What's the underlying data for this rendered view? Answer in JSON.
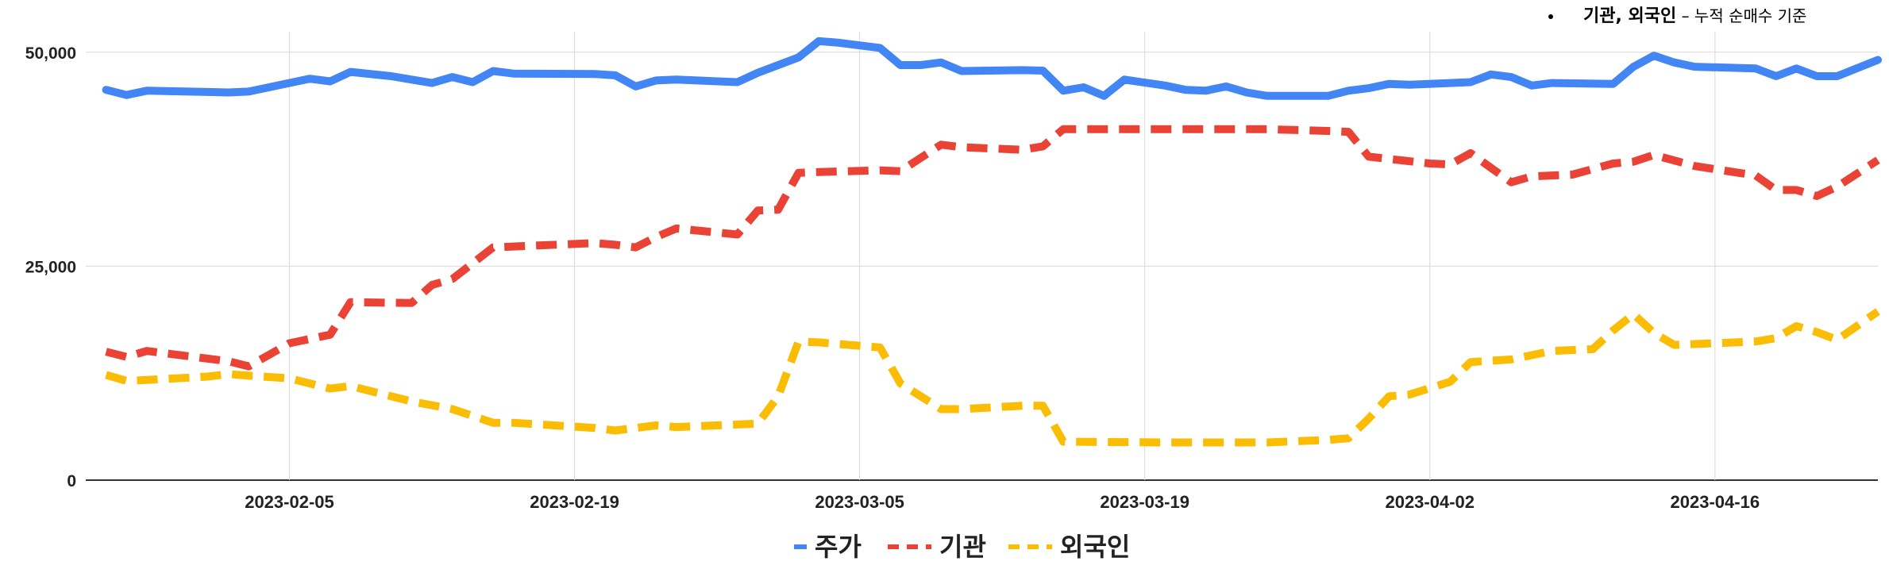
{
  "note": {
    "bold": "기관, 외국인",
    "rest": " – 누적 순매수 기준"
  },
  "colors": {
    "price": "#4285F4",
    "institution": "#EA4335",
    "foreign": "#FBBC04",
    "grid": "#d9d9d9"
  },
  "chart_data": {
    "type": "line",
    "title": "",
    "xlabel": "",
    "ylabel": "",
    "ylim": [
      0,
      51000
    ],
    "xlim": [
      "2023-01-26",
      "2023-04-24"
    ],
    "yticks": [
      0,
      25000,
      50000
    ],
    "ytick_labels": [
      "0",
      "25,000",
      "50,000"
    ],
    "xticks": [
      "2023-02-05",
      "2023-02-19",
      "2023-03-05",
      "2023-03-19",
      "2023-04-02",
      "2023-04-16"
    ],
    "grid": true,
    "legend_position": "bottom",
    "series": [
      {
        "name": "주가",
        "style": "solid",
        "color": "#4285F4",
        "points": [
          [
            "2023-01-27",
            45600
          ],
          [
            "2023-01-28",
            45000
          ],
          [
            "2023-01-29",
            45500
          ],
          [
            "2023-02-01",
            45350
          ],
          [
            "2023-02-02",
            45300
          ],
          [
            "2023-02-03",
            45400
          ],
          [
            "2023-02-06",
            46900
          ],
          [
            "2023-02-07",
            46600
          ],
          [
            "2023-02-08",
            47700
          ],
          [
            "2023-02-10",
            47200
          ],
          [
            "2023-02-12",
            46400
          ],
          [
            "2023-02-13",
            47100
          ],
          [
            "2023-02-14",
            46500
          ],
          [
            "2023-02-15",
            47800
          ],
          [
            "2023-02-16",
            47500
          ],
          [
            "2023-02-20",
            47450
          ],
          [
            "2023-02-21",
            47300
          ],
          [
            "2023-02-22",
            46000
          ],
          [
            "2023-02-23",
            46700
          ],
          [
            "2023-02-24",
            46800
          ],
          [
            "2023-02-27",
            46500
          ],
          [
            "2023-02-28",
            47600
          ],
          [
            "2023-03-02",
            49400
          ],
          [
            "2023-03-03",
            51300
          ],
          [
            "2023-03-04",
            51100
          ],
          [
            "2023-03-06",
            50500
          ],
          [
            "2023-03-07",
            48500
          ],
          [
            "2023-03-08",
            48500
          ],
          [
            "2023-03-09",
            48800
          ],
          [
            "2023-03-10",
            47800
          ],
          [
            "2023-03-13",
            47900
          ],
          [
            "2023-03-14",
            47850
          ],
          [
            "2023-03-15",
            45500
          ],
          [
            "2023-03-16",
            45900
          ],
          [
            "2023-03-17",
            44900
          ],
          [
            "2023-03-18",
            46800
          ],
          [
            "2023-03-20",
            46100
          ],
          [
            "2023-03-21",
            45600
          ],
          [
            "2023-03-22",
            45500
          ],
          [
            "2023-03-23",
            46000
          ],
          [
            "2023-03-24",
            45300
          ],
          [
            "2023-03-25",
            44900
          ],
          [
            "2023-03-28",
            44900
          ],
          [
            "2023-03-29",
            45500
          ],
          [
            "2023-03-30",
            45800
          ],
          [
            "2023-03-31",
            46300
          ],
          [
            "2023-04-01",
            46200
          ],
          [
            "2023-04-03",
            46400
          ],
          [
            "2023-04-04",
            46500
          ],
          [
            "2023-04-05",
            47400
          ],
          [
            "2023-04-06",
            47100
          ],
          [
            "2023-04-07",
            46100
          ],
          [
            "2023-04-08",
            46400
          ],
          [
            "2023-04-11",
            46300
          ],
          [
            "2023-04-12",
            48300
          ],
          [
            "2023-04-13",
            49600
          ],
          [
            "2023-04-14",
            48800
          ],
          [
            "2023-04-15",
            48300
          ],
          [
            "2023-04-18",
            48100
          ],
          [
            "2023-04-19",
            47200
          ],
          [
            "2023-04-20",
            48100
          ],
          [
            "2023-04-21",
            47200
          ],
          [
            "2023-04-22",
            47200
          ],
          [
            "2023-04-24",
            49100
          ]
        ]
      },
      {
        "name": "기관",
        "style": "dashed",
        "color": "#EA4335",
        "points": [
          [
            "2023-01-27",
            15000
          ],
          [
            "2023-01-28",
            14400
          ],
          [
            "2023-01-29",
            15100
          ],
          [
            "2023-02-01",
            14200
          ],
          [
            "2023-02-02",
            13900
          ],
          [
            "2023-02-03",
            13300
          ],
          [
            "2023-02-05",
            16000
          ],
          [
            "2023-02-07",
            17000
          ],
          [
            "2023-02-08",
            20800
          ],
          [
            "2023-02-11",
            20700
          ],
          [
            "2023-02-12",
            22800
          ],
          [
            "2023-02-13",
            23500
          ],
          [
            "2023-02-15",
            27200
          ],
          [
            "2023-02-16",
            27300
          ],
          [
            "2023-02-20",
            27700
          ],
          [
            "2023-02-21",
            27500
          ],
          [
            "2023-02-22",
            27200
          ],
          [
            "2023-02-23",
            28400
          ],
          [
            "2023-02-24",
            29400
          ],
          [
            "2023-02-27",
            28700
          ],
          [
            "2023-02-28",
            31500
          ],
          [
            "2023-03-01",
            31600
          ],
          [
            "2023-03-02",
            35900
          ],
          [
            "2023-03-03",
            36000
          ],
          [
            "2023-03-06",
            36200
          ],
          [
            "2023-03-07",
            36100
          ],
          [
            "2023-03-09",
            39200
          ],
          [
            "2023-03-10",
            38900
          ],
          [
            "2023-03-13",
            38600
          ],
          [
            "2023-03-14",
            39000
          ],
          [
            "2023-03-15",
            41000
          ],
          [
            "2023-03-20",
            41000
          ],
          [
            "2023-03-25",
            41000
          ],
          [
            "2023-03-28",
            40800
          ],
          [
            "2023-03-29",
            40700
          ],
          [
            "2023-03-30",
            37800
          ],
          [
            "2023-04-02",
            37000
          ],
          [
            "2023-04-03",
            36900
          ],
          [
            "2023-04-04",
            38200
          ],
          [
            "2023-04-06",
            34800
          ],
          [
            "2023-04-07",
            35500
          ],
          [
            "2023-04-09",
            35700
          ],
          [
            "2023-04-11",
            37000
          ],
          [
            "2023-04-12",
            37200
          ],
          [
            "2023-04-13",
            38000
          ],
          [
            "2023-04-15",
            36700
          ],
          [
            "2023-04-18",
            35600
          ],
          [
            "2023-04-19",
            33900
          ],
          [
            "2023-04-20",
            33900
          ],
          [
            "2023-04-21",
            33200
          ],
          [
            "2023-04-22",
            34300
          ],
          [
            "2023-04-24",
            37400
          ]
        ]
      },
      {
        "name": "외국인",
        "style": "dashed",
        "color": "#FBBC04",
        "points": [
          [
            "2023-01-27",
            12300
          ],
          [
            "2023-01-28",
            11600
          ],
          [
            "2023-01-29",
            11700
          ],
          [
            "2023-02-01",
            12100
          ],
          [
            "2023-02-02",
            12400
          ],
          [
            "2023-02-03",
            12200
          ],
          [
            "2023-02-05",
            11900
          ],
          [
            "2023-02-07",
            10700
          ],
          [
            "2023-02-08",
            11000
          ],
          [
            "2023-02-11",
            9200
          ],
          [
            "2023-02-13",
            8300
          ],
          [
            "2023-02-15",
            6700
          ],
          [
            "2023-02-16",
            6700
          ],
          [
            "2023-02-20",
            6100
          ],
          [
            "2023-02-21",
            5800
          ],
          [
            "2023-02-23",
            6400
          ],
          [
            "2023-02-24",
            6200
          ],
          [
            "2023-02-27",
            6500
          ],
          [
            "2023-02-28",
            6600
          ],
          [
            "2023-03-01",
            9800
          ],
          [
            "2023-03-02",
            16200
          ],
          [
            "2023-03-03",
            16100
          ],
          [
            "2023-03-06",
            15500
          ],
          [
            "2023-03-07",
            11300
          ],
          [
            "2023-03-09",
            8300
          ],
          [
            "2023-03-10",
            8300
          ],
          [
            "2023-03-13",
            8700
          ],
          [
            "2023-03-14",
            8700
          ],
          [
            "2023-03-15",
            4500
          ],
          [
            "2023-03-20",
            4400
          ],
          [
            "2023-03-25",
            4400
          ],
          [
            "2023-03-28",
            4700
          ],
          [
            "2023-03-29",
            4900
          ],
          [
            "2023-03-30",
            7200
          ],
          [
            "2023-03-31",
            9800
          ],
          [
            "2023-04-01",
            10000
          ],
          [
            "2023-04-03",
            11500
          ],
          [
            "2023-04-04",
            13800
          ],
          [
            "2023-04-06",
            14100
          ],
          [
            "2023-04-08",
            15100
          ],
          [
            "2023-04-10",
            15300
          ],
          [
            "2023-04-11",
            17500
          ],
          [
            "2023-04-12",
            19400
          ],
          [
            "2023-04-13",
            17200
          ],
          [
            "2023-04-14",
            15800
          ],
          [
            "2023-04-18",
            16200
          ],
          [
            "2023-04-19",
            16600
          ],
          [
            "2023-04-20",
            18000
          ],
          [
            "2023-04-21",
            17300
          ],
          [
            "2023-04-22",
            16400
          ],
          [
            "2023-04-24",
            19700
          ]
        ]
      }
    ]
  }
}
